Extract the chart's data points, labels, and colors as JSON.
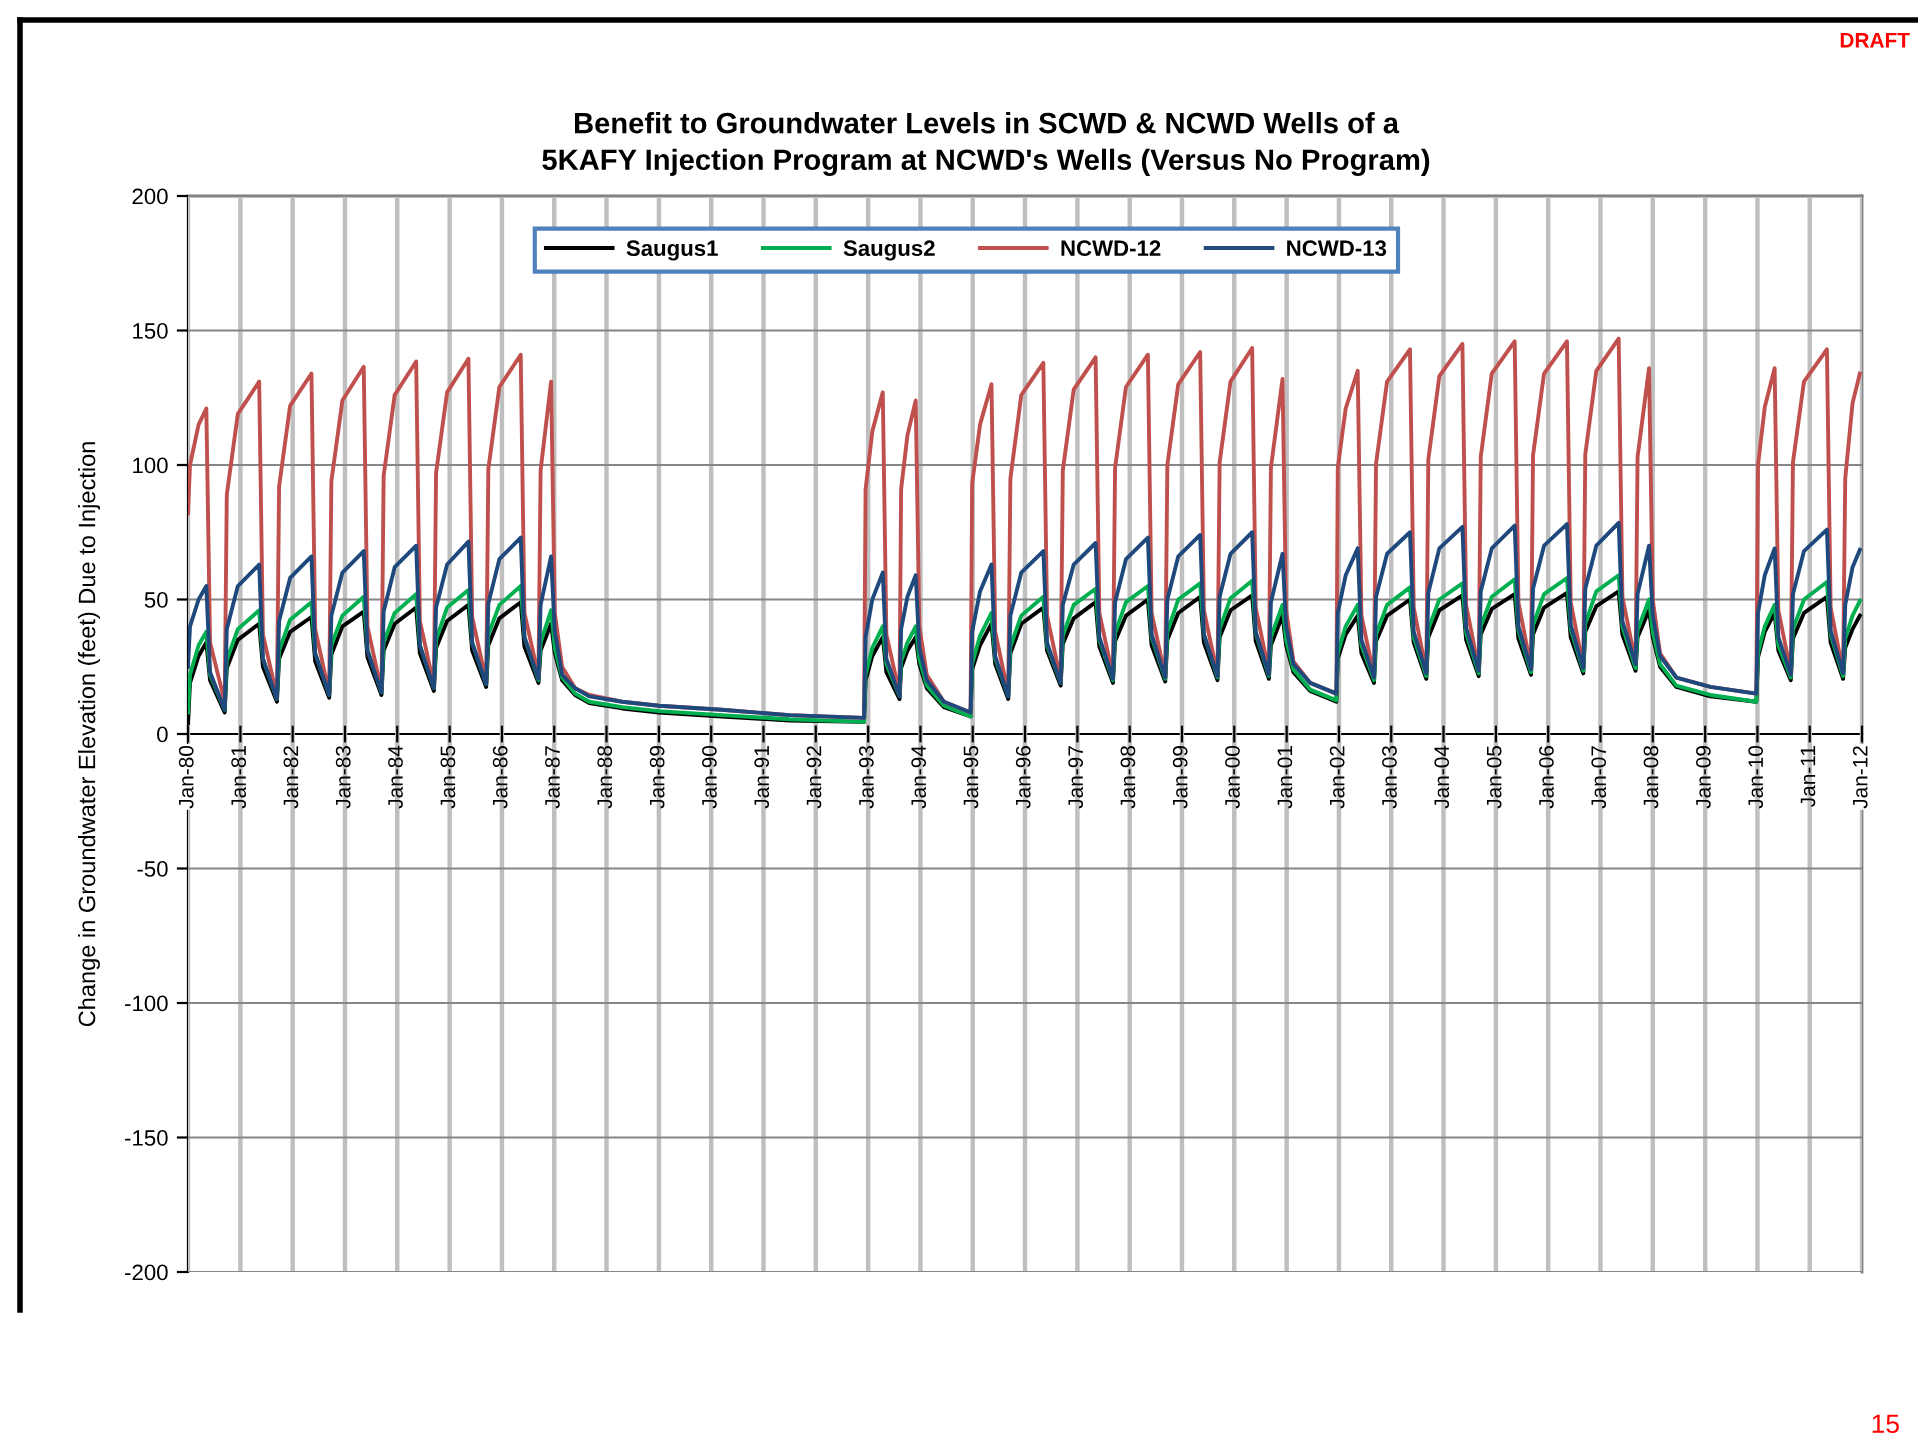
{
  "chart_data": {
    "type": "line",
    "title": "Benefit to Groundwater Levels in SCWD & NCWD Wells of a\n5KAFY Injection Program at NCWD's Wells (Versus No Program)",
    "ylabel": "Change in Groundwater Elevation (feet) Due to Injection",
    "annotations": [
      "DRAFT",
      "15"
    ],
    "xlim": [
      "1980-01-01",
      "2012-01-01"
    ],
    "ylim": [
      -200,
      200
    ],
    "xticks": [
      {
        "value": "1980-01-01",
        "label": "Jan-80"
      },
      {
        "value": "1981-01-01",
        "label": "Jan-81"
      },
      {
        "value": "1982-01-01",
        "label": "Jan-82"
      },
      {
        "value": "1983-01-01",
        "label": "Jan-83"
      },
      {
        "value": "1984-01-01",
        "label": "Jan-84"
      },
      {
        "value": "1985-01-01",
        "label": "Jan-85"
      },
      {
        "value": "1986-01-01",
        "label": "Jan-86"
      },
      {
        "value": "1987-01-01",
        "label": "Jan-87"
      },
      {
        "value": "1988-01-01",
        "label": "Jan-88"
      },
      {
        "value": "1989-01-01",
        "label": "Jan-89"
      },
      {
        "value": "1990-01-01",
        "label": "Jan-90"
      },
      {
        "value": "1991-01-01",
        "label": "Jan-91"
      },
      {
        "value": "1992-01-01",
        "label": "Jan-92"
      },
      {
        "value": "1993-01-01",
        "label": "Jan-93"
      },
      {
        "value": "1994-01-01",
        "label": "Jan-94"
      },
      {
        "value": "1995-01-01",
        "label": "Jan-95"
      },
      {
        "value": "1996-01-01",
        "label": "Jan-96"
      },
      {
        "value": "1997-01-01",
        "label": "Jan-97"
      },
      {
        "value": "1998-01-01",
        "label": "Jan-98"
      },
      {
        "value": "1999-01-01",
        "label": "Jan-99"
      },
      {
        "value": "2000-01-01",
        "label": "Jan-00"
      },
      {
        "value": "2001-01-01",
        "label": "Jan-01"
      },
      {
        "value": "2002-01-01",
        "label": "Jan-02"
      },
      {
        "value": "2003-01-01",
        "label": "Jan-03"
      },
      {
        "value": "2004-01-01",
        "label": "Jan-04"
      },
      {
        "value": "2005-01-01",
        "label": "Jan-05"
      },
      {
        "value": "2006-01-01",
        "label": "Jan-06"
      },
      {
        "value": "2007-01-01",
        "label": "Jan-07"
      },
      {
        "value": "2008-01-01",
        "label": "Jan-08"
      },
      {
        "value": "2009-01-01",
        "label": "Jan-09"
      },
      {
        "value": "2010-01-01",
        "label": "Jan-10"
      },
      {
        "value": "2011-01-01",
        "label": "Jan-11"
      },
      {
        "value": "2012-01-01",
        "label": "Jan-12"
      }
    ],
    "yticks": [
      -200,
      -150,
      -100,
      -50,
      0,
      50,
      100,
      150,
      200
    ],
    "grid": true,
    "legend": "top",
    "marker": "none",
    "line_style": "solid",
    "x": [
      "1980-01-01",
      "1980-01-15",
      "1980-03-15",
      "1980-05-08",
      "1980-06-03",
      "1980-09-13",
      "1980-09-28",
      "1980-12-14",
      "1981-05-12",
      "1981-06-07",
      "1981-09-13",
      "1981-09-28",
      "1981-12-14",
      "1982-05-12",
      "1982-06-07",
      "1982-09-13",
      "1982-09-28",
      "1982-12-14",
      "1983-05-12",
      "1983-06-07",
      "1983-09-13",
      "1983-09-28",
      "1983-12-14",
      "1984-05-12",
      "1984-06-07",
      "1984-09-13",
      "1984-09-28",
      "1984-12-14",
      "1985-05-12",
      "1985-06-07",
      "1985-09-13",
      "1985-09-28",
      "1985-12-14",
      "1986-05-12",
      "1986-06-07",
      "1986-09-13",
      "1986-09-28",
      "1986-12-10",
      "1987-01-05",
      "1987-02-25",
      "1987-05-27",
      "1987-09-03",
      "1988-04-20",
      "1989-01-01",
      "1990-03-15",
      "1991-07-02",
      "1992-12-03",
      "1992-12-14",
      "1993-01-30",
      "1993-04-13",
      "1993-05-08",
      "1993-08-08",
      "1993-08-19",
      "1993-10-02",
      "1993-11-29",
      "1993-12-24",
      "1994-02-14",
      "1994-06-14",
      "1994-12-17",
      "1994-12-28",
      "1995-02-21",
      "1995-05-12",
      "1995-06-07",
      "1995-09-06",
      "1995-09-21",
      "1995-12-06",
      "1996-05-08",
      "1996-06-03",
      "1996-09-06",
      "1996-09-21",
      "1996-12-06",
      "1997-05-08",
      "1997-06-03",
      "1997-09-06",
      "1997-09-21",
      "1997-12-06",
      "1998-05-08",
      "1998-06-03",
      "1998-09-06",
      "1998-09-21",
      "1998-12-06",
      "1999-05-08",
      "1999-06-03",
      "1999-09-06",
      "1999-09-21",
      "1999-12-06",
      "2000-05-05",
      "2000-05-30",
      "2000-08-30",
      "2000-09-13",
      "2000-12-03",
      "2000-12-28",
      "2001-02-17",
      "2001-06-14",
      "2001-12-14",
      "2001-12-24",
      "2002-02-17",
      "2002-05-12",
      "2002-06-07",
      "2002-09-03",
      "2002-09-17",
      "2002-12-03",
      "2003-05-12",
      "2003-06-07",
      "2003-09-03",
      "2003-09-17",
      "2003-12-03",
      "2004-05-12",
      "2004-06-07",
      "2004-09-03",
      "2004-09-17",
      "2004-12-03",
      "2005-05-12",
      "2005-06-07",
      "2005-09-03",
      "2005-09-17",
      "2005-12-03",
      "2006-05-12",
      "2006-06-07",
      "2006-09-03",
      "2006-09-17",
      "2006-12-03",
      "2007-05-08",
      "2007-06-03",
      "2007-09-03",
      "2007-09-17",
      "2007-12-06",
      "2008-01-01",
      "2008-02-21",
      "2008-06-14",
      "2009-02-06",
      "2009-12-24",
      "2010-01-05",
      "2010-02-21",
      "2010-05-01",
      "2010-05-27",
      "2010-08-22",
      "2010-09-06",
      "2010-11-22",
      "2011-05-01",
      "2011-05-27",
      "2011-08-22",
      "2011-09-06",
      "2011-10-27",
      "2011-12-17"
    ],
    "series": [
      {
        "name": "Saugus1",
        "color": "#000000",
        "values": [
          4,
          19,
          29,
          34,
          20,
          8,
          24.5,
          35,
          41,
          25,
          12,
          28,
          38,
          43.5,
          27,
          13.5,
          29.5,
          40,
          45.5,
          28.5,
          14.5,
          31,
          41,
          47,
          30,
          16,
          32,
          42,
          48,
          31,
          17.5,
          33,
          43,
          49,
          32.5,
          19,
          31,
          41,
          30,
          20,
          14.5,
          11.5,
          9.5,
          8,
          6.5,
          5,
          4.5,
          20,
          29,
          36,
          23,
          13,
          24.5,
          31,
          36,
          26,
          17,
          10,
          6.5,
          24,
          33,
          41,
          26,
          13,
          30,
          41,
          47,
          31,
          18,
          33.5,
          43,
          49,
          32.5,
          19,
          34.5,
          44,
          50,
          33,
          19.5,
          35,
          45,
          51,
          34,
          20,
          36,
          46,
          51.5,
          34.5,
          20.5,
          33,
          44,
          33,
          23,
          16,
          12,
          28,
          37,
          44,
          30,
          19,
          34.5,
          44,
          50,
          34,
          20.5,
          36,
          46,
          51.5,
          35,
          21.5,
          37,
          46.5,
          52,
          35.5,
          22,
          37,
          47,
          52.5,
          36,
          22.5,
          38,
          47.5,
          53,
          37,
          23.5,
          36,
          46,
          36,
          25,
          17.5,
          14,
          12,
          28.5,
          38,
          45,
          31,
          20,
          35.5,
          45,
          51,
          34,
          20.5,
          32,
          39,
          44
        ]
      },
      {
        "name": "Saugus2",
        "color": "#00b050",
        "values": [
          8,
          22,
          33,
          38,
          22,
          9,
          27.5,
          39,
          46,
          28,
          13,
          31,
          42.5,
          49,
          30,
          14.5,
          33,
          44,
          51,
          31.5,
          15.5,
          34,
          45,
          52,
          33,
          17,
          35,
          47,
          53.5,
          34,
          18.5,
          37,
          48,
          55,
          36,
          20,
          34,
          46,
          32,
          21,
          15,
          12,
          10,
          8.5,
          7,
          5.5,
          4.5,
          22,
          32,
          40,
          26,
          14,
          27,
          34,
          40,
          28,
          18,
          10.5,
          6.5,
          26,
          36.5,
          45,
          28,
          14,
          32.5,
          44,
          51,
          33,
          19,
          36.5,
          48,
          54,
          35,
          20,
          37.5,
          49,
          55,
          36,
          20.5,
          38,
          50,
          56,
          37,
          21,
          39,
          50.5,
          57,
          37.5,
          21.5,
          36,
          48,
          35,
          24,
          16.5,
          12.5,
          30,
          40,
          48,
          33,
          20,
          37,
          48,
          54.5,
          36,
          21.5,
          39,
          50,
          56,
          37.5,
          22.5,
          40,
          51,
          57.5,
          38.5,
          23,
          40.5,
          52,
          58,
          39,
          23.5,
          41,
          53,
          59,
          40,
          24.5,
          38.5,
          50,
          38,
          26,
          18,
          14.5,
          12,
          30,
          40,
          48,
          33,
          21,
          39,
          50,
          56.5,
          37,
          21.5,
          35.5,
          44,
          49.5
        ]
      },
      {
        "name": "NCWD-12",
        "color": "#c0504d",
        "values": [
          82,
          100,
          115,
          121,
          34,
          12,
          89,
          119,
          131,
          37,
          14,
          92,
          122,
          134,
          39,
          15,
          94,
          124,
          136.5,
          40,
          16,
          96,
          126,
          138.5,
          42,
          18,
          97,
          127,
          139.5,
          43.5,
          19.5,
          98.5,
          129,
          141,
          45,
          21.5,
          98,
          131,
          45,
          25,
          17,
          14.5,
          12,
          10.5,
          9,
          7,
          6,
          91,
          112.5,
          127,
          37,
          15,
          91,
          111,
          124,
          40,
          22,
          12,
          8,
          93,
          115,
          130,
          38,
          15,
          95,
          126,
          138,
          44,
          20,
          98,
          128,
          140,
          45,
          21.5,
          99,
          129,
          141,
          45,
          21.5,
          100,
          130,
          142,
          46,
          22,
          101,
          131,
          143.5,
          47,
          23,
          99,
          132,
          46,
          27,
          19,
          15,
          99,
          121,
          135,
          44,
          21.5,
          100.5,
          131,
          143,
          47,
          23,
          102,
          133,
          145,
          48,
          24,
          103,
          134,
          146,
          49,
          24.5,
          103.5,
          134,
          146,
          49,
          25,
          104,
          135,
          147,
          51,
          26.5,
          103,
          136,
          50,
          30,
          21,
          17.5,
          15,
          100,
          121.5,
          136,
          46,
          23,
          101,
          131,
          143,
          47,
          23,
          95,
          123,
          134
        ]
      },
      {
        "name": "NCWD-13",
        "color": "#1f497d",
        "values": [
          25,
          40,
          50,
          55,
          23,
          9,
          39,
          55,
          63,
          28,
          13,
          42,
          58,
          66,
          30,
          14.5,
          44,
          60,
          68,
          31,
          15.5,
          45.5,
          62,
          70,
          33,
          17,
          47,
          63,
          71.5,
          34,
          18.5,
          48.5,
          65,
          73,
          36,
          20.5,
          48,
          66,
          38,
          22,
          17,
          14,
          12,
          10.5,
          9,
          7,
          6,
          36,
          50,
          60,
          28,
          14,
          39,
          51,
          59,
          32,
          20,
          12,
          8,
          38,
          53,
          63,
          29,
          14,
          44,
          60,
          68,
          34,
          19,
          48,
          63,
          71,
          36,
          20.5,
          49,
          65,
          73,
          37,
          21,
          50,
          66,
          74,
          37,
          21.5,
          51,
          67,
          75,
          38,
          22,
          49,
          67,
          40,
          26,
          19,
          15,
          45,
          59,
          69,
          35,
          21,
          51,
          67,
          75,
          38,
          22.5,
          52.5,
          69,
          77,
          39.5,
          23.5,
          53,
          69,
          77.5,
          40,
          24,
          54,
          70,
          78,
          40.5,
          24.5,
          54,
          70,
          78.5,
          42,
          26,
          52,
          70,
          44,
          29,
          21,
          17.5,
          15,
          45,
          59,
          69,
          36,
          22,
          52,
          68,
          76,
          38.5,
          22.5,
          48,
          62,
          68.5
        ]
      }
    ]
  }
}
